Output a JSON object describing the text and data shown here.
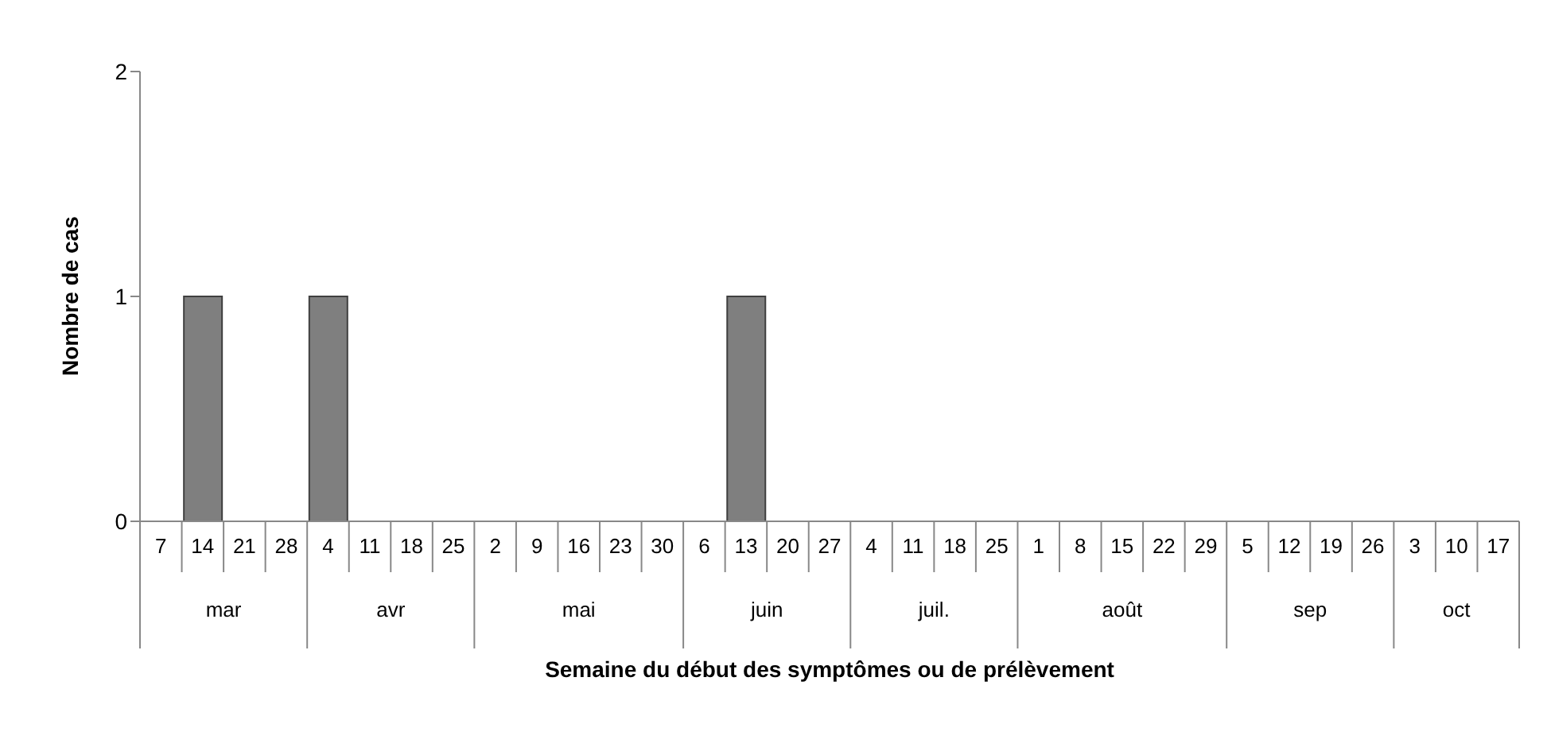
{
  "chart_data": {
    "type": "bar",
    "xlabel": "Semaine du début des symptômes ou de prélèvement",
    "ylabel": "Nombre de cas",
    "categories": [
      "7",
      "14",
      "21",
      "28",
      "4",
      "11",
      "18",
      "25",
      "2",
      "9",
      "16",
      "23",
      "30",
      "6",
      "13",
      "20",
      "27",
      "4",
      "11",
      "18",
      "25",
      "1",
      "8",
      "15",
      "22",
      "29",
      "5",
      "12",
      "19",
      "26",
      "3",
      "10",
      "17"
    ],
    "values": [
      0,
      1,
      0,
      0,
      1,
      0,
      0,
      0,
      0,
      0,
      0,
      0,
      0,
      0,
      1,
      0,
      0,
      0,
      0,
      0,
      0,
      0,
      0,
      0,
      0,
      0,
      0,
      0,
      0,
      0,
      0,
      0,
      0
    ],
    "color": "#7f7f7f",
    "ylim": [
      0,
      2
    ],
    "yticks": [
      0,
      1,
      2
    ],
    "annotations": [
      "mar",
      "avr",
      "mai",
      "juin",
      "juil.",
      "août",
      "sep",
      "oct"
    ]
  }
}
